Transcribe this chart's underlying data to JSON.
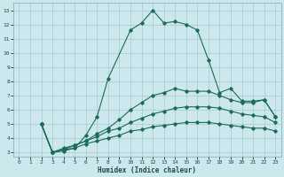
{
  "xlabel": "Humidex (Indice chaleur)",
  "bg_color": "#cce8ec",
  "grid_color": "#aacdd4",
  "line_color": "#1a6b5a",
  "xlim": [
    -0.5,
    23.5
  ],
  "ylim": [
    2.7,
    13.5
  ],
  "xticks": [
    0,
    1,
    2,
    3,
    4,
    5,
    6,
    7,
    8,
    9,
    10,
    11,
    12,
    13,
    14,
    15,
    16,
    17,
    18,
    19,
    20,
    21,
    22,
    23
  ],
  "yticks": [
    3,
    4,
    5,
    6,
    7,
    8,
    9,
    10,
    11,
    12,
    13
  ],
  "line1_x": [
    2,
    3,
    4,
    5,
    6,
    7,
    8,
    10,
    11,
    12,
    13,
    14,
    15,
    16,
    17,
    18,
    19,
    20,
    21,
    22,
    23
  ],
  "line1_y": [
    5.0,
    3.0,
    3.2,
    3.3,
    4.2,
    5.5,
    8.2,
    11.6,
    12.1,
    13.0,
    12.1,
    12.2,
    12.0,
    11.6,
    9.5,
    7.2,
    7.5,
    6.6,
    6.6,
    6.7,
    5.5
  ],
  "line2_x": [
    2,
    3,
    4,
    5,
    6,
    7,
    8,
    9,
    10,
    11,
    12,
    13,
    14,
    15,
    16,
    17,
    18,
    19,
    20,
    21,
    22,
    23
  ],
  "line2_y": [
    5.0,
    3.0,
    3.3,
    3.5,
    3.8,
    4.3,
    4.7,
    5.3,
    6.0,
    6.5,
    7.0,
    7.2,
    7.5,
    7.3,
    7.3,
    7.3,
    7.0,
    6.7,
    6.5,
    6.5,
    6.7,
    5.5
  ],
  "line3_x": [
    2,
    3,
    4,
    5,
    6,
    7,
    8,
    9,
    10,
    11,
    12,
    13,
    14,
    15,
    16,
    17,
    18,
    19,
    20,
    21,
    22,
    23
  ],
  "line3_y": [
    5.0,
    3.0,
    3.2,
    3.5,
    3.8,
    4.1,
    4.5,
    4.7,
    5.1,
    5.4,
    5.7,
    5.9,
    6.1,
    6.2,
    6.2,
    6.2,
    6.1,
    5.9,
    5.7,
    5.6,
    5.5,
    5.1
  ],
  "line4_x": [
    2,
    3,
    4,
    5,
    6,
    7,
    8,
    9,
    10,
    11,
    12,
    13,
    14,
    15,
    16,
    17,
    18,
    19,
    20,
    21,
    22,
    23
  ],
  "line4_y": [
    5.0,
    3.0,
    3.1,
    3.3,
    3.6,
    3.8,
    4.0,
    4.2,
    4.5,
    4.6,
    4.8,
    4.9,
    5.0,
    5.1,
    5.1,
    5.1,
    5.0,
    4.9,
    4.8,
    4.7,
    4.7,
    4.5
  ]
}
